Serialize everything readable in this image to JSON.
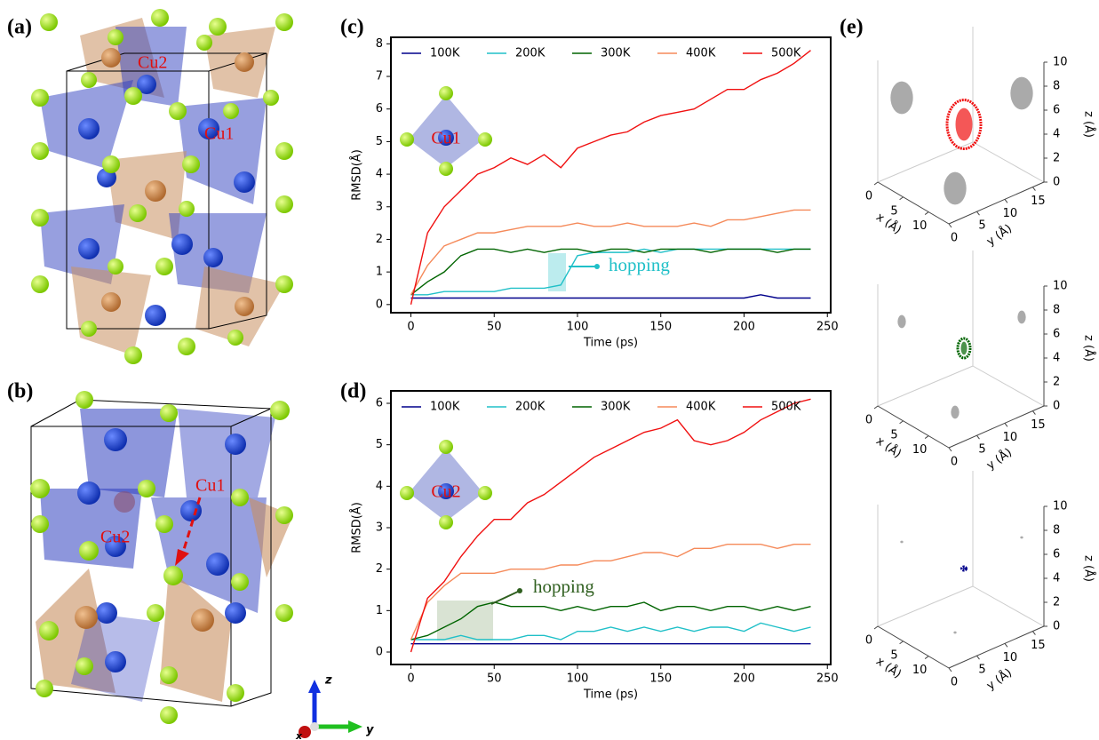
{
  "panel_labels": [
    "(a)",
    "(b)",
    "(c)",
    "(d)",
    "(e)"
  ],
  "structure_a": {
    "labels": [
      "Cu2",
      "Cu1"
    ]
  },
  "structure_b": {
    "labels": [
      "Cu1",
      "Cu2"
    ]
  },
  "axis_triad": [
    "z",
    "y",
    "x"
  ],
  "chart_data": [
    {
      "type": "line",
      "xlabel": "Time (ps)",
      "ylabel": "RMSD(Å)",
      "inset_label": "Cu1",
      "annotation": "hopping",
      "x": [
        0,
        10,
        20,
        30,
        40,
        50,
        60,
        70,
        80,
        90,
        100,
        110,
        120,
        130,
        140,
        150,
        160,
        170,
        180,
        190,
        200,
        210,
        220,
        230,
        240
      ],
      "xlim": [
        -12,
        252
      ],
      "xticks": [
        0,
        50,
        100,
        150,
        200,
        250
      ],
      "ylim": [
        -0.25,
        8.2
      ],
      "yticks": [
        0,
        1,
        2,
        3,
        4,
        5,
        6,
        7,
        8
      ],
      "legend": "upper",
      "series": [
        {
          "name": "100K",
          "color": "#00008b",
          "values": [
            0.2,
            0.2,
            0.2,
            0.2,
            0.2,
            0.2,
            0.2,
            0.2,
            0.2,
            0.2,
            0.2,
            0.2,
            0.2,
            0.2,
            0.2,
            0.2,
            0.2,
            0.2,
            0.2,
            0.2,
            0.2,
            0.3,
            0.2,
            0.2,
            0.2
          ]
        },
        {
          "name": "200K",
          "color": "#20c0c8",
          "values": [
            0.3,
            0.3,
            0.4,
            0.4,
            0.4,
            0.4,
            0.5,
            0.5,
            0.5,
            0.6,
            1.5,
            1.6,
            1.6,
            1.6,
            1.7,
            1.6,
            1.7,
            1.7,
            1.7,
            1.7,
            1.7,
            1.7,
            1.7,
            1.7,
            1.7
          ]
        },
        {
          "name": "300K",
          "color": "#006400",
          "values": [
            0.3,
            0.7,
            1.0,
            1.5,
            1.7,
            1.7,
            1.6,
            1.7,
            1.6,
            1.7,
            1.7,
            1.6,
            1.7,
            1.7,
            1.6,
            1.7,
            1.7,
            1.7,
            1.6,
            1.7,
            1.7,
            1.7,
            1.6,
            1.7,
            1.7
          ]
        },
        {
          "name": "400K",
          "color": "#f58a5a",
          "values": [
            0.3,
            1.2,
            1.8,
            2.0,
            2.2,
            2.2,
            2.3,
            2.4,
            2.4,
            2.4,
            2.5,
            2.4,
            2.4,
            2.5,
            2.4,
            2.4,
            2.4,
            2.5,
            2.4,
            2.6,
            2.6,
            2.7,
            2.8,
            2.9,
            2.9
          ]
        },
        {
          "name": "500K",
          "color": "#f01010",
          "values": [
            0,
            2.2,
            3.0,
            3.5,
            4.0,
            4.2,
            4.5,
            4.3,
            4.6,
            4.2,
            4.8,
            5.0,
            5.2,
            5.3,
            5.6,
            5.8,
            5.9,
            6.0,
            6.3,
            6.6,
            6.6,
            6.9,
            7.1,
            7.4,
            7.8
          ]
        }
      ]
    },
    {
      "type": "line",
      "xlabel": "Time (ps)",
      "ylabel": "RMSD(Å)",
      "inset_label": "Cu2",
      "annotation": "hopping",
      "x": [
        0,
        10,
        20,
        30,
        40,
        50,
        60,
        70,
        80,
        90,
        100,
        110,
        120,
        130,
        140,
        150,
        160,
        170,
        180,
        190,
        200,
        210,
        220,
        230,
        240
      ],
      "xlim": [
        -12,
        252
      ],
      "xticks": [
        0,
        50,
        100,
        150,
        200,
        250
      ],
      "ylim": [
        -0.3,
        6.3
      ],
      "yticks": [
        0,
        1,
        2,
        3,
        4,
        5,
        6
      ],
      "legend": "upper",
      "series": [
        {
          "name": "100K",
          "color": "#00008b",
          "values": [
            0.2,
            0.2,
            0.2,
            0.2,
            0.2,
            0.2,
            0.2,
            0.2,
            0.2,
            0.2,
            0.2,
            0.2,
            0.2,
            0.2,
            0.2,
            0.2,
            0.2,
            0.2,
            0.2,
            0.2,
            0.2,
            0.2,
            0.2,
            0.2,
            0.2
          ]
        },
        {
          "name": "200K",
          "color": "#20c0c8",
          "values": [
            0.3,
            0.3,
            0.3,
            0.4,
            0.3,
            0.3,
            0.3,
            0.4,
            0.4,
            0.3,
            0.5,
            0.5,
            0.6,
            0.5,
            0.6,
            0.5,
            0.6,
            0.5,
            0.6,
            0.6,
            0.5,
            0.7,
            0.6,
            0.5,
            0.6
          ]
        },
        {
          "name": "300K",
          "color": "#006400",
          "values": [
            0.3,
            0.4,
            0.6,
            0.8,
            1.1,
            1.2,
            1.1,
            1.1,
            1.1,
            1.0,
            1.1,
            1.0,
            1.1,
            1.1,
            1.2,
            1.0,
            1.1,
            1.1,
            1.0,
            1.1,
            1.1,
            1.0,
            1.1,
            1.0,
            1.1
          ]
        },
        {
          "name": "400K",
          "color": "#f58a5a",
          "values": [
            0.3,
            1.2,
            1.6,
            1.9,
            1.9,
            1.9,
            2.0,
            2.0,
            2.0,
            2.1,
            2.1,
            2.2,
            2.2,
            2.3,
            2.4,
            2.4,
            2.3,
            2.5,
            2.5,
            2.6,
            2.6,
            2.6,
            2.5,
            2.6,
            2.6
          ]
        },
        {
          "name": "500K",
          "color": "#f01010",
          "values": [
            0,
            1.3,
            1.7,
            2.3,
            2.8,
            3.2,
            3.2,
            3.6,
            3.8,
            4.1,
            4.4,
            4.7,
            4.9,
            5.1,
            5.3,
            5.4,
            5.6,
            5.1,
            5.0,
            5.1,
            5.3,
            5.6,
            5.8,
            6.0,
            6.1
          ]
        }
      ]
    }
  ],
  "trajectory_plots": [
    {
      "color": "#f01010",
      "xlabel": "x (Å)",
      "ylabel": "y (Å)",
      "zlabel": "z (Å)",
      "xlim": [
        0,
        14
      ],
      "ylim": [
        0,
        17
      ],
      "zlim": [
        0,
        10
      ],
      "xticks": [
        0,
        5,
        10
      ],
      "yticks": [
        0,
        5,
        10,
        15
      ],
      "zticks": [
        0,
        2,
        4,
        6,
        8,
        10
      ]
    },
    {
      "color": "#006400",
      "xlabel": "x (Å)",
      "ylabel": "y (Å)",
      "zlabel": "z (Å)",
      "xlim": [
        0,
        14
      ],
      "ylim": [
        0,
        17
      ],
      "zlim": [
        0,
        10
      ],
      "xticks": [
        0,
        5,
        10
      ],
      "yticks": [
        0,
        5,
        10,
        15
      ],
      "zticks": [
        0,
        2,
        4,
        6,
        8,
        10
      ]
    },
    {
      "color": "#00008b",
      "xlabel": "x (Å)",
      "ylabel": "y (Å)",
      "zlabel": "z (Å)",
      "xlim": [
        0,
        14
      ],
      "ylim": [
        0,
        17
      ],
      "zlim": [
        0,
        10
      ],
      "xticks": [
        0,
        5,
        10
      ],
      "yticks": [
        0,
        5,
        10,
        15
      ],
      "zticks": [
        0,
        2,
        4,
        6,
        8,
        10
      ]
    }
  ]
}
